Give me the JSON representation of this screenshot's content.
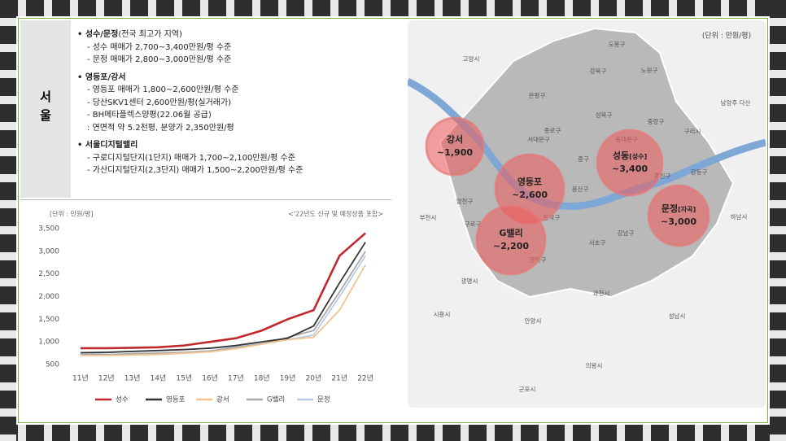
{
  "region": "서울",
  "groups": [
    {
      "title": "• 성수/문정",
      "note": "(전국 최고가 지역)",
      "items": [
        "- 성수 매매가 2,700~3,400만원/평 수준",
        "- 문정 매매가 2,800~3,000만원/평 수준"
      ]
    },
    {
      "title": "• 영등포/강서",
      "items": [
        "- 영등포 매매가 1,800~2,600만원/평 수준",
        "- 당산SKV1센터 2,600만원/평(실거래가)",
        "- BH메타플렉스양평(22.06월 공급)",
        ": 연면적 약 5.2천평, 분양가 2,350만원/평"
      ]
    },
    {
      "title": "• 서울디지털밸리",
      "items": [
        "- 구로디지털단지(1단지) 매매가 1,700~2,100만원/평 수준",
        "- 가산디지털단지(2,3단지) 매매가 1,500~2,200만원/평 수준"
      ]
    }
  ],
  "chart_data": {
    "type": "line",
    "unit": "[단위 : 만원/평]",
    "note": "<'22년도 신규 및 예정상품 포함>",
    "categories": [
      "11년",
      "12년",
      "13년",
      "14년",
      "15년",
      "16년",
      "17년",
      "18년",
      "19년",
      "20년",
      "21년",
      "22년"
    ],
    "ylim": [
      500,
      3500
    ],
    "yticks": [
      500,
      {
        "value": 1000,
        "label": "1,000"
      },
      {
        "value": 1500,
        "label": "1,500"
      },
      {
        "value": 2000,
        "label": "2,000"
      },
      {
        "value": 2500,
        "label": "2,500"
      },
      {
        "value": 3000,
        "label": "3,000"
      },
      {
        "value": 3500,
        "label": "3,500"
      }
    ],
    "grid": false,
    "legend": "bottom",
    "series": [
      {
        "name": "성수",
        "color": "#c0282d",
        "values": [
          860,
          860,
          870,
          880,
          920,
          1000,
          1080,
          1250,
          1500,
          1700,
          2900,
          3400
        ]
      },
      {
        "name": "영등포",
        "color": "#333333",
        "values": [
          760,
          770,
          790,
          810,
          830,
          860,
          920,
          1000,
          1080,
          1350,
          2300,
          3200
        ]
      },
      {
        "name": "강서",
        "color": "#f2c28f",
        "values": [
          700,
          700,
          710,
          720,
          750,
          780,
          850,
          950,
          1050,
          1100,
          1700,
          2700
        ]
      },
      {
        "name": "G밸리",
        "color": "#aaaaaa",
        "values": [
          720,
          720,
          740,
          750,
          770,
          800,
          880,
          950,
          1100,
          1250,
          2100,
          3000
        ]
      },
      {
        "name": "문정",
        "color": "#b7cde6",
        "values": [
          720,
          760,
          790,
          800,
          830,
          860,
          900,
          980,
          1050,
          1150,
          2000,
          2900
        ]
      }
    ]
  },
  "map": {
    "unit": "(단위 : 만원/평)",
    "districts": [
      "고양시",
      "도봉구",
      "강북구",
      "노원구",
      "은평구",
      "성북구",
      "중랑구",
      "남양주 다산",
      "종로구",
      "동대문구",
      "구리시",
      "서대문구",
      "중구",
      "광진구",
      "강동구",
      "용산구",
      "양천구",
      "부천시",
      "구로구",
      "동작구",
      "하남시",
      "강남구",
      "서초구",
      "관악구",
      "광명시",
      "과천시",
      "시흥시",
      "안양시",
      "성남시",
      "의왕시",
      "군포시"
    ],
    "bubbles": [
      {
        "name": "강서",
        "value": "~1,900"
      },
      {
        "name": "영등포",
        "value": "~2,600"
      },
      {
        "name": "G밸리",
        "value": "~2,200"
      },
      {
        "name": "성동",
        "sub": "[성수]",
        "value": "~3,400"
      },
      {
        "name": "문정",
        "sub": "[자곡]",
        "value": "~3,000"
      }
    ]
  }
}
